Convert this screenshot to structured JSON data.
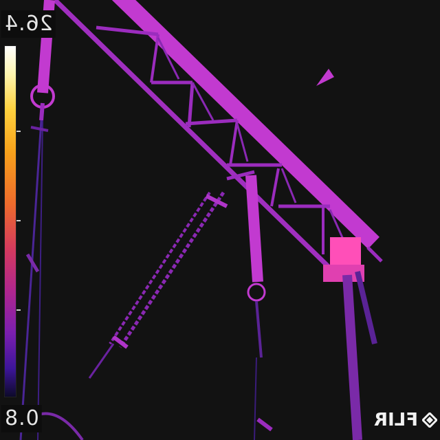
{
  "scale": {
    "max_label": "26.4",
    "min_label": "0.8"
  },
  "brand": {
    "logo_text": "FLIR"
  },
  "colors": {
    "background": "#121212",
    "structure_hot": "#ff4fb8",
    "structure_main": "#c23ad0",
    "structure_dim": "#7a2aa8",
    "structure_cool": "#4a2596"
  }
}
